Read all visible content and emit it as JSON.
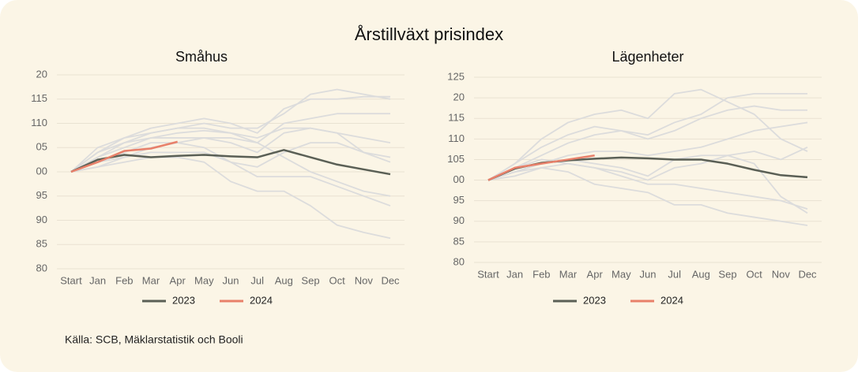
{
  "title": "Årstillväxt prisindex",
  "source": "Källa: SCB, Mäklarstatistik och Booli",
  "chart_data": [
    {
      "type": "line",
      "title": "Småhus",
      "categories": [
        "Start",
        "Jan",
        "Feb",
        "Mar",
        "Apr",
        "May",
        "Jun",
        "Jul",
        "Aug",
        "Sep",
        "Oct",
        "Nov",
        "Dec"
      ],
      "ylim": [
        80,
        120
      ],
      "yticks": [
        {
          "value": 120,
          "label": "20"
        },
        115,
        110,
        {
          "value": 105,
          "label": "05"
        },
        {
          "value": 100,
          "label": "00"
        },
        95,
        90,
        85,
        80
      ],
      "grid": true,
      "series": [
        {
          "color": "#dcdcdc",
          "values": [
            100,
            103,
            105,
            107,
            108,
            108.5,
            108,
            106,
            110,
            111,
            112,
            112,
            112
          ]
        },
        {
          "color": "#dcdcdc",
          "values": [
            100,
            104,
            107,
            109,
            110,
            111,
            110,
            108,
            113,
            115,
            115,
            115.5,
            115.5
          ]
        },
        {
          "color": "#dcdcdc",
          "values": [
            100,
            101,
            102,
            103,
            103,
            102,
            98,
            96,
            96,
            93,
            89,
            87.5,
            86.3
          ]
        },
        {
          "color": "#dcdcdc",
          "values": [
            100,
            102,
            104,
            106,
            106,
            105,
            102,
            99,
            99,
            99,
            97,
            95,
            93
          ]
        },
        {
          "color": "#dcdcdc",
          "values": [
            100,
            105,
            107,
            108,
            109,
            109,
            108,
            107,
            109,
            109,
            108,
            107,
            106
          ]
        },
        {
          "color": "#dcdcdc",
          "values": [
            100,
            103,
            106,
            108,
            109,
            110,
            109,
            109,
            112,
            116,
            117,
            116,
            115
          ]
        },
        {
          "color": "#dcdcdc",
          "values": [
            100,
            102,
            103,
            104,
            104,
            104,
            102,
            101,
            104,
            106,
            106,
            104,
            102
          ]
        },
        {
          "color": "#dcdcdc",
          "values": [
            100,
            104,
            106,
            107,
            107,
            107,
            106,
            104,
            108,
            109,
            108,
            104,
            103
          ]
        },
        {
          "color": "#dcdcdc",
          "values": [
            100,
            101,
            103,
            105,
            106,
            107,
            107,
            106,
            103,
            100,
            98,
            96,
            95
          ]
        },
        {
          "name": "2023",
          "color": "#5a5f55",
          "values": [
            100,
            102.5,
            103.5,
            103,
            103.3,
            103.5,
            103.2,
            103,
            104.5,
            103,
            101.5,
            100.5,
            99.5
          ]
        },
        {
          "name": "2024",
          "color": "#e8806a",
          "values": [
            100,
            102,
            104.3,
            104.8,
            106.2,
            null,
            null,
            null,
            null,
            null,
            null,
            null,
            null
          ]
        }
      ]
    },
    {
      "type": "line",
      "title": "Lägenheter",
      "categories": [
        "Start",
        "Jan",
        "Feb",
        "Mar",
        "Apr",
        "May",
        "Jun",
        "Jul",
        "Aug",
        "Sep",
        "Oct",
        "Nov",
        "Dec"
      ],
      "ylim": [
        80,
        125
      ],
      "yticks": [
        125,
        {
          "value": 120,
          "label": "20"
        },
        115,
        110,
        105,
        {
          "value": 100,
          "label": "00"
        },
        95,
        90,
        85,
        80
      ],
      "grid": true,
      "series": [
        {
          "color": "#dcdcdc",
          "values": [
            100,
            104,
            110,
            114,
            116,
            117,
            115,
            121,
            122,
            119,
            116,
            110,
            107
          ]
        },
        {
          "color": "#dcdcdc",
          "values": [
            100,
            103,
            106,
            109,
            111,
            112,
            111,
            114,
            116,
            120,
            121,
            121,
            121
          ]
        },
        {
          "color": "#dcdcdc",
          "values": [
            100,
            102,
            103,
            102,
            99,
            98,
            97,
            94,
            94,
            92,
            91,
            90,
            89
          ]
        },
        {
          "color": "#dcdcdc",
          "values": [
            100,
            101,
            103,
            104,
            103,
            101,
            99,
            99,
            98,
            97,
            96,
            95,
            93
          ]
        },
        {
          "color": "#dcdcdc",
          "values": [
            100,
            104,
            108,
            111,
            113,
            112,
            110,
            112,
            115,
            117,
            118,
            117,
            117
          ]
        },
        {
          "color": "#dcdcdc",
          "values": [
            100,
            102,
            104,
            106,
            107,
            107,
            106,
            107,
            108,
            110,
            112,
            113,
            114
          ]
        },
        {
          "color": "#dcdcdc",
          "values": [
            100,
            103,
            105,
            104,
            103,
            102,
            100,
            103,
            104,
            106,
            107,
            105,
            108
          ]
        },
        {
          "color": "#dcdcdc",
          "values": [
            100,
            102,
            104,
            105,
            104,
            103,
            101,
            105,
            106,
            106,
            104,
            96,
            92
          ]
        },
        {
          "name": "2023",
          "color": "#5a5f55",
          "values": [
            100,
            102.8,
            104.2,
            104.8,
            105.2,
            105.5,
            105.3,
            105,
            105,
            104,
            102.5,
            101.2,
            100.7
          ]
        },
        {
          "name": "2024",
          "color": "#e8806a",
          "values": [
            100,
            103,
            104,
            105,
            106,
            null,
            null,
            null,
            null,
            null,
            null,
            null,
            null
          ]
        }
      ]
    }
  ]
}
